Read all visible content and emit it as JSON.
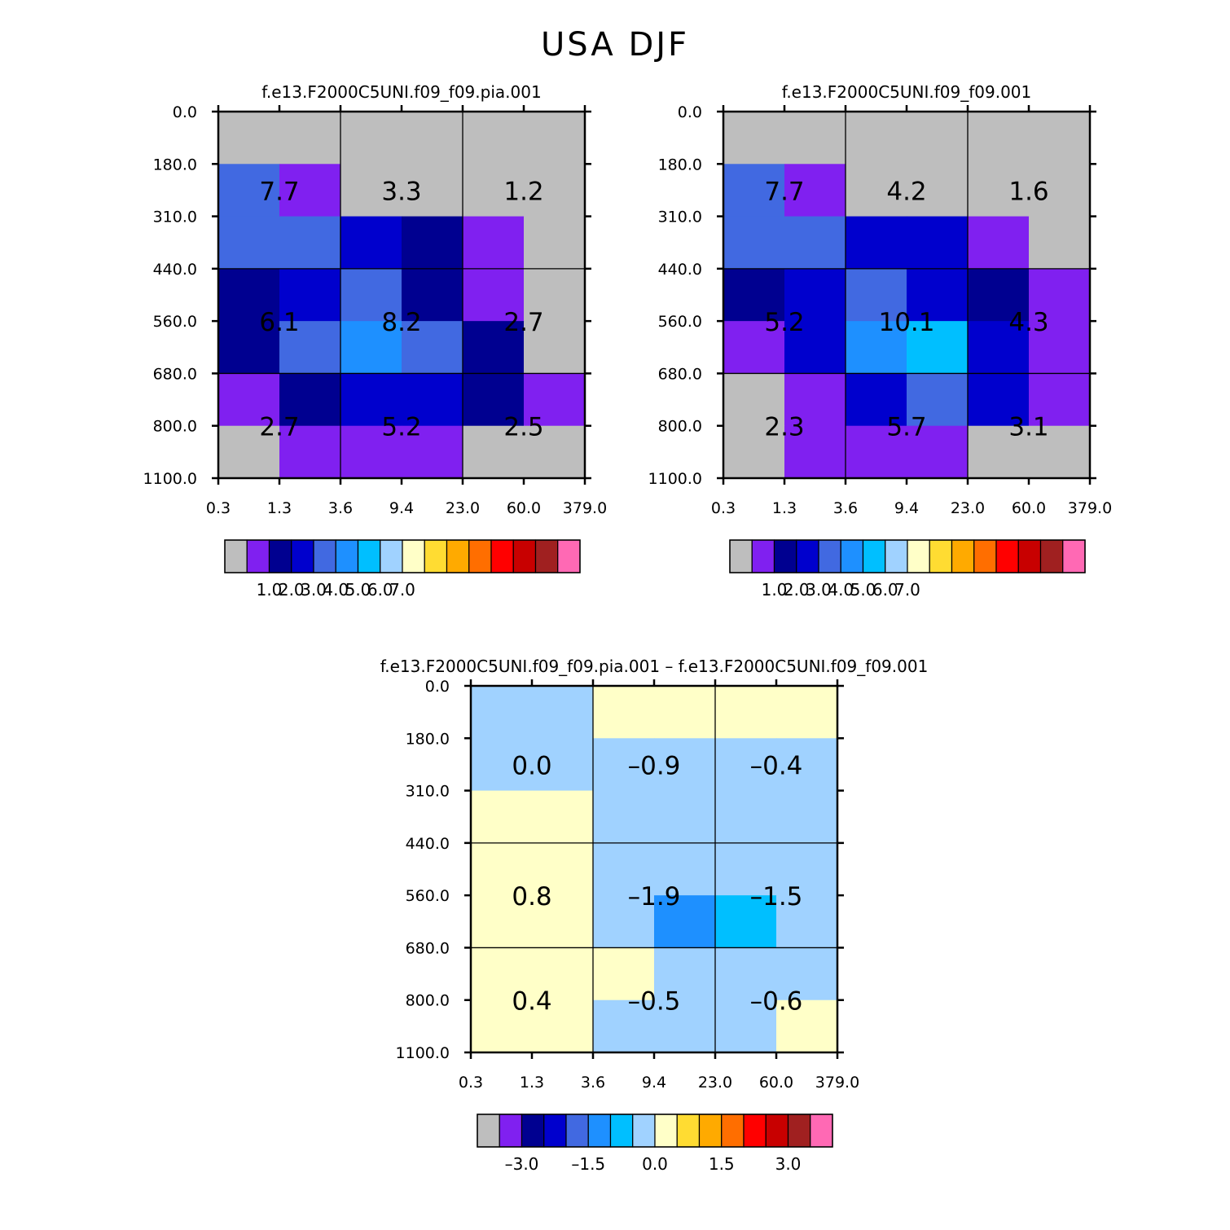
{
  "title": "USA DJF",
  "chart_data": [
    {
      "type": "heatmap",
      "title": "f.e13.F2000C5UNI.f09_f09.pia.001",
      "x_ticks": [
        "0.3",
        "1.3",
        "3.6",
        "9.4",
        "23.0",
        "60.0",
        "379.0"
      ],
      "y_ticks": [
        "0.0",
        "180.0",
        "310.0",
        "440.0",
        "560.0",
        "680.0",
        "800.0",
        "1100.0"
      ],
      "cells": [
        [
          0,
          0,
          0,
          0,
          0,
          0
        ],
        [
          4,
          1,
          0,
          0,
          0,
          0
        ],
        [
          4,
          4,
          3,
          2,
          1,
          0
        ],
        [
          2,
          3,
          4,
          2,
          1,
          0
        ],
        [
          2,
          4,
          5,
          4,
          2,
          0
        ],
        [
          1,
          2,
          3,
          3,
          2,
          1
        ],
        [
          0,
          1,
          1,
          1,
          0,
          0
        ]
      ],
      "cell_labels": [
        {
          "value": "7.7",
          "row": 1,
          "col": 0
        },
        {
          "value": "3.3",
          "row": 1,
          "col": 1
        },
        {
          "value": "1.2",
          "row": 1,
          "col": 2
        },
        {
          "value": "6.1",
          "row": 2,
          "col": 0
        },
        {
          "value": "8.2",
          "row": 2,
          "col": 1
        },
        {
          "value": "2.7",
          "row": 2,
          "col": 2
        },
        {
          "value": "2.7",
          "row": 3,
          "col": 0
        },
        {
          "value": "5.2",
          "row": 3,
          "col": 1
        },
        {
          "value": "2.5",
          "row": 3,
          "col": 2
        }
      ],
      "colorbar_labels": [
        "1.0",
        "2.0",
        "3.0",
        "4.0",
        "5.0",
        "6.0",
        "7.0"
      ]
    },
    {
      "type": "heatmap",
      "title": "f.e13.F2000C5UNI.f09_f09.001",
      "x_ticks": [
        "0.3",
        "1.3",
        "3.6",
        "9.4",
        "23.0",
        "60.0",
        "379.0"
      ],
      "y_ticks": [
        "0.0",
        "180.0",
        "310.0",
        "440.0",
        "560.0",
        "680.0",
        "800.0",
        "1100.0"
      ],
      "cells": [
        [
          0,
          0,
          0,
          0,
          0,
          0
        ],
        [
          4,
          1,
          0,
          0,
          0,
          0
        ],
        [
          4,
          4,
          3,
          3,
          1,
          0
        ],
        [
          2,
          3,
          4,
          3,
          2,
          1
        ],
        [
          1,
          3,
          5,
          6,
          3,
          1
        ],
        [
          0,
          1,
          3,
          4,
          3,
          1
        ],
        [
          0,
          1,
          1,
          1,
          0,
          0
        ]
      ],
      "cell_labels": [
        {
          "value": "7.7",
          "row": 1,
          "col": 0
        },
        {
          "value": "4.2",
          "row": 1,
          "col": 1
        },
        {
          "value": "1.6",
          "row": 1,
          "col": 2
        },
        {
          "value": "5.2",
          "row": 2,
          "col": 0
        },
        {
          "value": "10.1",
          "row": 2,
          "col": 1
        },
        {
          "value": "4.3",
          "row": 2,
          "col": 2
        },
        {
          "value": "2.3",
          "row": 3,
          "col": 0
        },
        {
          "value": "5.7",
          "row": 3,
          "col": 1
        },
        {
          "value": "3.1",
          "row": 3,
          "col": 2
        }
      ],
      "colorbar_labels": [
        "1.0",
        "2.0",
        "3.0",
        "4.0",
        "5.0",
        "6.0",
        "7.0"
      ]
    },
    {
      "type": "heatmap",
      "title": "f.e13.F2000C5UNI.f09_f09.pia.001 – f.e13.F2000C5UNI.f09_f09.001",
      "x_ticks": [
        "0.3",
        "1.3",
        "3.6",
        "9.4",
        "23.0",
        "60.0",
        "379.0"
      ],
      "y_ticks": [
        "0.0",
        "180.0",
        "310.0",
        "440.0",
        "560.0",
        "680.0",
        "800.0",
        "1100.0"
      ],
      "cells": [
        [
          7,
          7,
          8,
          8,
          8,
          8
        ],
        [
          7,
          7,
          7,
          7,
          7,
          7
        ],
        [
          8,
          8,
          7,
          7,
          7,
          7
        ],
        [
          8,
          8,
          7,
          7,
          7,
          7
        ],
        [
          8,
          8,
          7,
          5,
          6,
          7
        ],
        [
          8,
          8,
          8,
          7,
          7,
          7
        ],
        [
          8,
          8,
          7,
          7,
          7,
          8
        ]
      ],
      "cell_labels": [
        {
          "value": "0.0",
          "row": 1,
          "col": 0
        },
        {
          "value": "–0.9",
          "row": 1,
          "col": 1
        },
        {
          "value": "–0.4",
          "row": 1,
          "col": 2
        },
        {
          "value": "0.8",
          "row": 2,
          "col": 0
        },
        {
          "value": "–1.9",
          "row": 2,
          "col": 1
        },
        {
          "value": "–1.5",
          "row": 2,
          "col": 2
        },
        {
          "value": "0.4",
          "row": 3,
          "col": 0
        },
        {
          "value": "–0.5",
          "row": 3,
          "col": 1
        },
        {
          "value": "–0.6",
          "row": 3,
          "col": 2
        }
      ],
      "colorbar_labels": [
        "–3.0",
        "–1.5",
        "0.0",
        "1.5",
        "3.0"
      ]
    }
  ],
  "colorbar_colors": [
    "#bebebe",
    "#8020f0",
    "#000090",
    "#0000cd",
    "#4169e1",
    "#1e90ff",
    "#00bfff",
    "#a0d2ff",
    "#ffffc8",
    "#ffdc32",
    "#ffaa00",
    "#ff6e00",
    "#ff0000",
    "#c80000",
    "#a02020",
    "#ff69b4"
  ]
}
